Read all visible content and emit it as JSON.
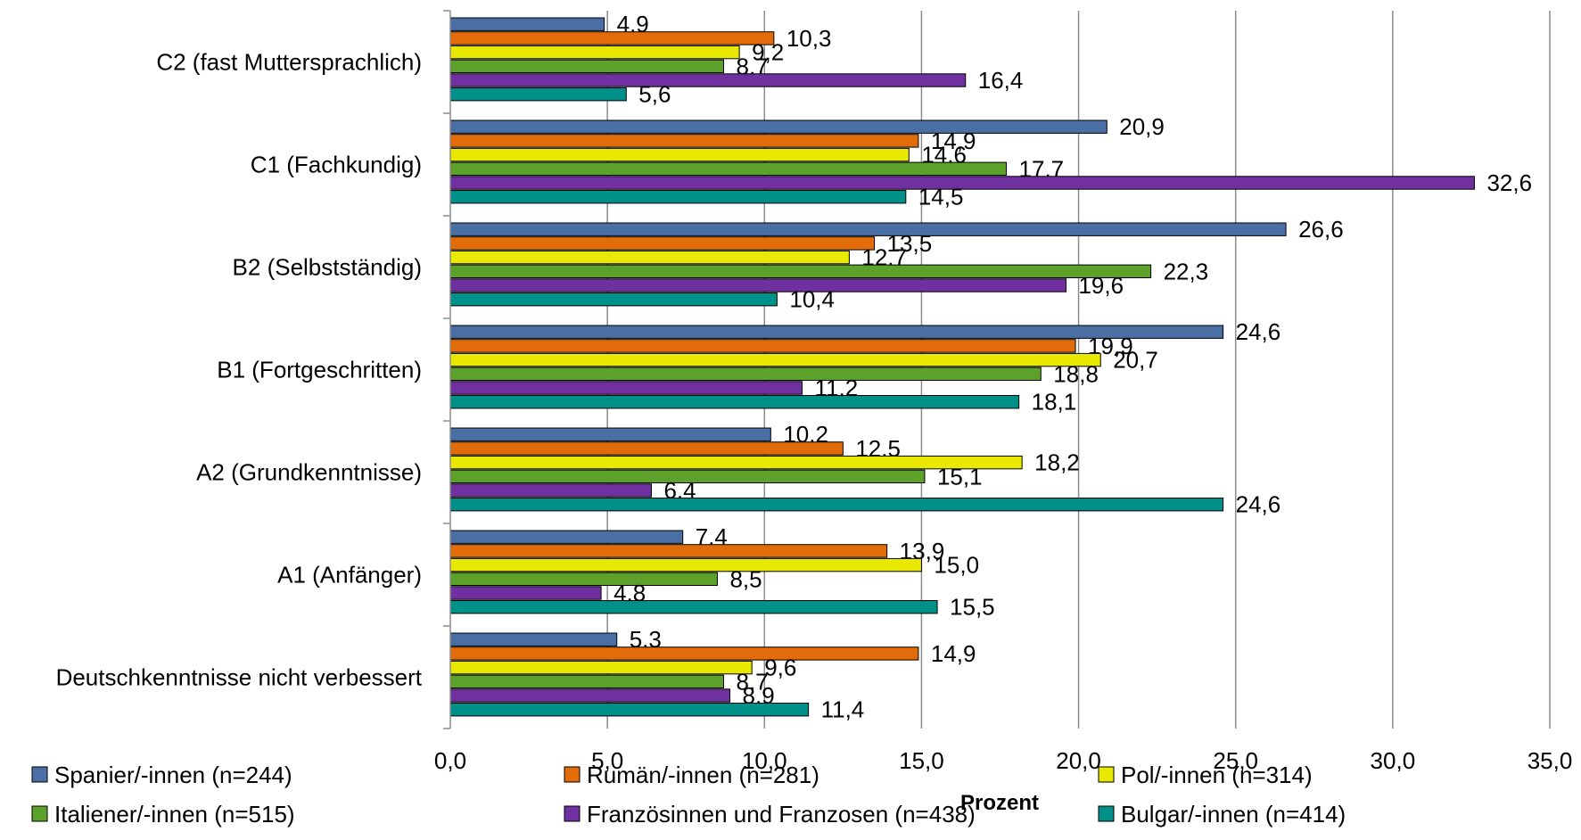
{
  "chart_data": {
    "type": "bar",
    "orientation": "horizontal",
    "categories": [
      "C2 (fast Muttersprachlich)",
      "C1 (Fachkundig)",
      "B2 (Selbstständig)",
      "B1 (Fortgeschritten)",
      "A2 (Grundkenntnisse)",
      "A1 (Anfänger)",
      "Deutschkenntnisse nicht verbessert"
    ],
    "series": [
      {
        "name": "Spanier/-innen (n=244)",
        "color": "#4a6fa5",
        "values": [
          4.9,
          20.9,
          26.6,
          24.6,
          10.2,
          7.4,
          5.3
        ],
        "labels": [
          "4,9",
          "20,9",
          "26,6",
          "24,6",
          "10,2",
          "7,4",
          "5,3"
        ]
      },
      {
        "name": "Rumän/-innen (n=281)",
        "color": "#e36c0a",
        "values": [
          10.3,
          14.9,
          13.5,
          19.9,
          12.5,
          13.9,
          14.9
        ],
        "labels": [
          "10,3",
          "14,9",
          "13,5",
          "19,9",
          "12,5",
          "13,9",
          "14,9"
        ]
      },
      {
        "name": "Pol/-innen (n=314)",
        "color": "#e8e800",
        "values": [
          9.2,
          14.6,
          12.7,
          20.7,
          18.2,
          15.0,
          9.6
        ],
        "labels": [
          "9,2",
          "14,6",
          "12,7",
          "20,7",
          "18,2",
          "15,0",
          "9,6"
        ]
      },
      {
        "name": "Italiener/-innen (n=515)",
        "color": "#5ca22a",
        "values": [
          8.7,
          17.7,
          22.3,
          18.8,
          15.1,
          8.5,
          8.7
        ],
        "labels": [
          "8,7",
          "17,7",
          "22,3",
          "18,8",
          "15,1",
          "8,5",
          "8,7"
        ]
      },
      {
        "name": "Französinnen und Franzosen (n=438)",
        "color": "#7030a0",
        "values": [
          16.4,
          32.6,
          19.6,
          11.2,
          6.4,
          4.8,
          8.9
        ],
        "labels": [
          "16,4",
          "32,6",
          "19,6",
          "11,2",
          "6,4",
          "4,8",
          "8,9"
        ]
      },
      {
        "name": "Bulgar/-innen (n=414)",
        "color": "#00908a",
        "values": [
          5.6,
          14.5,
          10.4,
          18.1,
          24.6,
          15.5,
          11.4
        ],
        "labels": [
          "5,6",
          "14,5",
          "10,4",
          "18,1",
          "24,6",
          "15,5",
          "11,4"
        ]
      }
    ],
    "xlim": [
      0,
      35
    ],
    "xticks": [
      "0,0",
      "5,0",
      "10,0",
      "15,0",
      "20,0",
      "25,0",
      "30,0",
      "35,0"
    ],
    "xlabel": "Prozent",
    "grid": "vertical",
    "legend_position": "bottom"
  }
}
